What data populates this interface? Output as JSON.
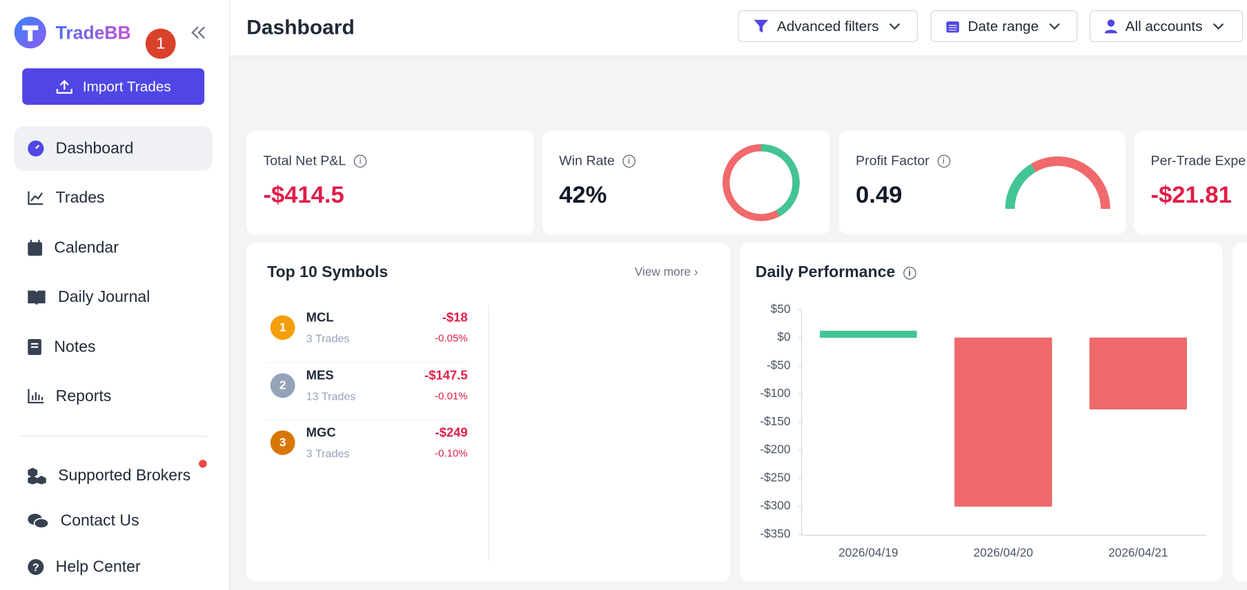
{
  "sidebar": {
    "brand": "TradeBB",
    "badge": "1",
    "import_button": "Import Trades",
    "nav": [
      "Dashboard",
      "Trades",
      "Calendar",
      "Daily Journal",
      "Notes",
      "Reports"
    ],
    "footer_nav": [
      "Supported Brokers",
      "Contact Us",
      "Help Center"
    ]
  },
  "header": {
    "title": "Dashboard",
    "filters": [
      "Advanced filters",
      "Date range",
      "All accounts"
    ]
  },
  "kpis": [
    {
      "label": "Total Net P&L",
      "value": "-$414.5"
    },
    {
      "label": "Win Rate",
      "value": "42%",
      "percent": 42
    },
    {
      "label": "Profit Factor",
      "value": "0.49",
      "factor": 0.49
    },
    {
      "label": "Per-Trade Expe",
      "value": "-$21.81"
    }
  ],
  "top_symbols": {
    "title": "Top 10 Symbols",
    "view_more": "View more",
    "rows": [
      {
        "rank": "1",
        "symbol": "MCL",
        "trades": "3 Trades",
        "pnl": "-$18",
        "pct": "-0.05%"
      },
      {
        "rank": "2",
        "symbol": "MES",
        "trades": "13 Trades",
        "pnl": "-$147.5",
        "pct": "-0.01%"
      },
      {
        "rank": "3",
        "symbol": "MGC",
        "trades": "3 Trades",
        "pnl": "-$249",
        "pct": "-0.10%"
      }
    ]
  },
  "chart_data": {
    "type": "bar",
    "title": "Daily Performance",
    "categories": [
      "2026/04/19",
      "2026/04/20",
      "2026/04/21"
    ],
    "values": [
      12.5,
      -300,
      -127
    ],
    "colors": {
      "positive": "#43c495",
      "negative": "#f0696b"
    },
    "ylim": [
      -350,
      50
    ],
    "yticks": [
      {
        "value": 50,
        "label": "$50"
      },
      {
        "value": 0,
        "label": "$0"
      },
      {
        "value": -50,
        "label": "-$50"
      },
      {
        "value": -100,
        "label": "-$100"
      },
      {
        "value": -150,
        "label": "-$150"
      },
      {
        "value": -200,
        "label": "-$200"
      },
      {
        "value": -250,
        "label": "-$250"
      },
      {
        "value": -300,
        "label": "-$300"
      },
      {
        "value": -350,
        "label": "-$350"
      }
    ]
  }
}
